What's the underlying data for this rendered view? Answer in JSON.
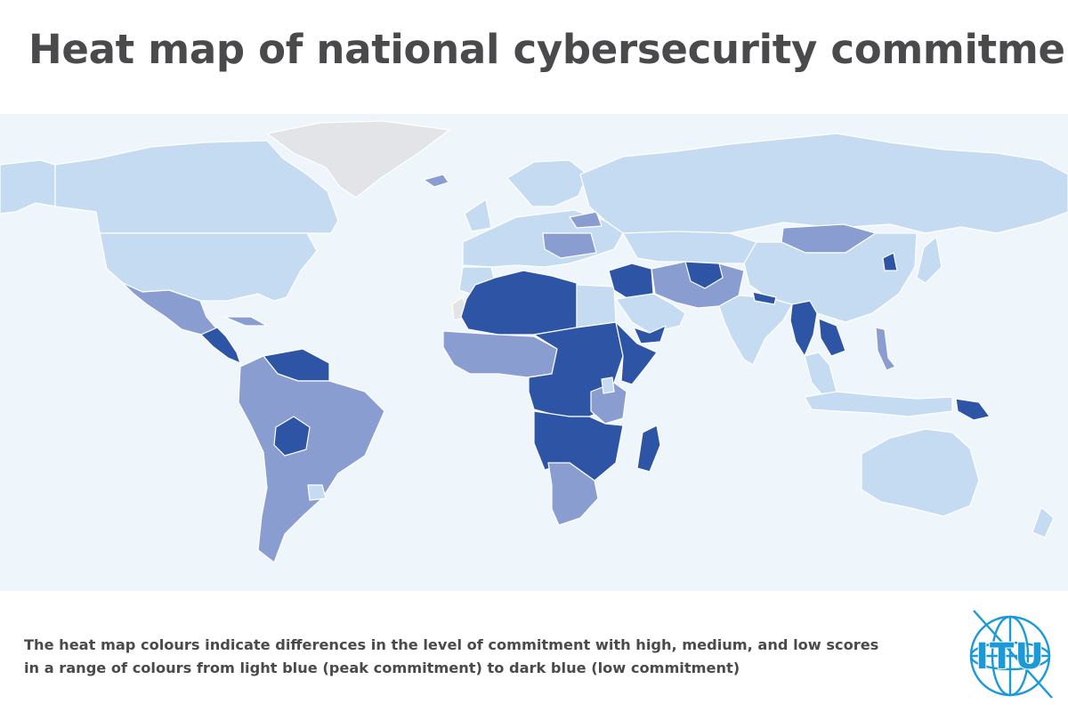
{
  "title": "Heat map of national cybersecurity commitment",
  "caption": {
    "line1": "The heat map colours indicate differences in the level of commitment with high, medium, and low scores",
    "line2": "in a range of colours from light blue (peak commitment) to dark blue (low commitment)"
  },
  "logo": {
    "text": "ITU",
    "icon": "itu-globe-logo"
  },
  "colors": {
    "ocean": "#eef5fb",
    "no_data": "#e2e4e7",
    "high_commitment": "#c5dbf1",
    "medium_commitment": "#8a9dd1",
    "low_commitment": "#2e54a6",
    "border": "#ffffff",
    "title_text": "#4a4a4c",
    "logo_blue": "#1c9ad6"
  },
  "regions": [
    {
      "id": "canada",
      "level": "high"
    },
    {
      "id": "usa",
      "level": "high"
    },
    {
      "id": "alaska",
      "level": "high"
    },
    {
      "id": "greenland",
      "level": "no_data"
    },
    {
      "id": "iceland",
      "level": "medium"
    },
    {
      "id": "mexico",
      "level": "medium"
    },
    {
      "id": "central-america",
      "level": "low"
    },
    {
      "id": "cuba",
      "level": "medium"
    },
    {
      "id": "south-america",
      "level": "medium"
    },
    {
      "id": "venezuela-guianas",
      "level": "low"
    },
    {
      "id": "bolivia",
      "level": "low"
    },
    {
      "id": "uruguay",
      "level": "high"
    },
    {
      "id": "europe",
      "level": "high"
    },
    {
      "id": "uk-ireland",
      "level": "high"
    },
    {
      "id": "scandinavia",
      "level": "high"
    },
    {
      "id": "belarus",
      "level": "medium"
    },
    {
      "id": "balkans",
      "level": "medium"
    },
    {
      "id": "russia",
      "level": "high"
    },
    {
      "id": "north-africa",
      "level": "low"
    },
    {
      "id": "egypt",
      "level": "high"
    },
    {
      "id": "morocco",
      "level": "high"
    },
    {
      "id": "western-sahara",
      "level": "no_data"
    },
    {
      "id": "west-africa",
      "level": "medium"
    },
    {
      "id": "central-africa",
      "level": "low"
    },
    {
      "id": "horn-of-africa",
      "level": "low"
    },
    {
      "id": "kenya-tanzania",
      "level": "medium"
    },
    {
      "id": "east-africa",
      "level": "high"
    },
    {
      "id": "southern-africa",
      "level": "medium"
    },
    {
      "id": "angola-mozambique",
      "level": "low"
    },
    {
      "id": "madagascar",
      "level": "low"
    },
    {
      "id": "arabian-peninsula",
      "level": "high"
    },
    {
      "id": "yemen",
      "level": "low"
    },
    {
      "id": "syria-iraq",
      "level": "low"
    },
    {
      "id": "iran-pakistan",
      "level": "medium"
    },
    {
      "id": "afghanistan",
      "level": "low"
    },
    {
      "id": "central-asia",
      "level": "high"
    },
    {
      "id": "mongolia",
      "level": "medium"
    },
    {
      "id": "china",
      "level": "high"
    },
    {
      "id": "india",
      "level": "high"
    },
    {
      "id": "nepal",
      "level": "low"
    },
    {
      "id": "myanmar",
      "level": "low"
    },
    {
      "id": "laos-cambodia",
      "level": "low"
    },
    {
      "id": "southeast-asia",
      "level": "high"
    },
    {
      "id": "north-korea",
      "level": "low"
    },
    {
      "id": "japan",
      "level": "high"
    },
    {
      "id": "philippines",
      "level": "medium"
    },
    {
      "id": "indonesia",
      "level": "high"
    },
    {
      "id": "papua-new-guinea",
      "level": "low"
    },
    {
      "id": "australia",
      "level": "high"
    },
    {
      "id": "new-zealand",
      "level": "high"
    }
  ]
}
